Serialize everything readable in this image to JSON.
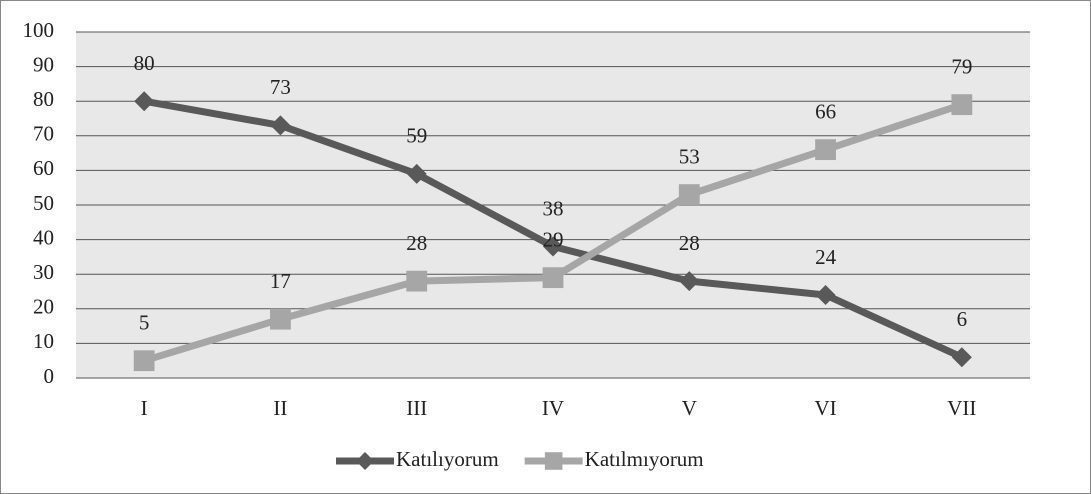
{
  "chart_data": {
    "type": "line",
    "categories": [
      "I",
      "II",
      "III",
      "IV",
      "V",
      "VI",
      "VII"
    ],
    "series": [
      {
        "name": "Katılıyorum",
        "color": "#595959",
        "marker": "diamond",
        "values": [
          80,
          73,
          59,
          38,
          28,
          24,
          6
        ]
      },
      {
        "name": "Katılmıyorum",
        "color": "#a6a6a6",
        "marker": "square",
        "values": [
          5,
          17,
          28,
          29,
          53,
          66,
          79
        ]
      }
    ],
    "ylim": [
      0,
      100
    ],
    "yticks": [
      0,
      10,
      20,
      30,
      40,
      50,
      60,
      70,
      80,
      90,
      100
    ],
    "grid": true,
    "legend": "bottom",
    "data_labels": true
  }
}
